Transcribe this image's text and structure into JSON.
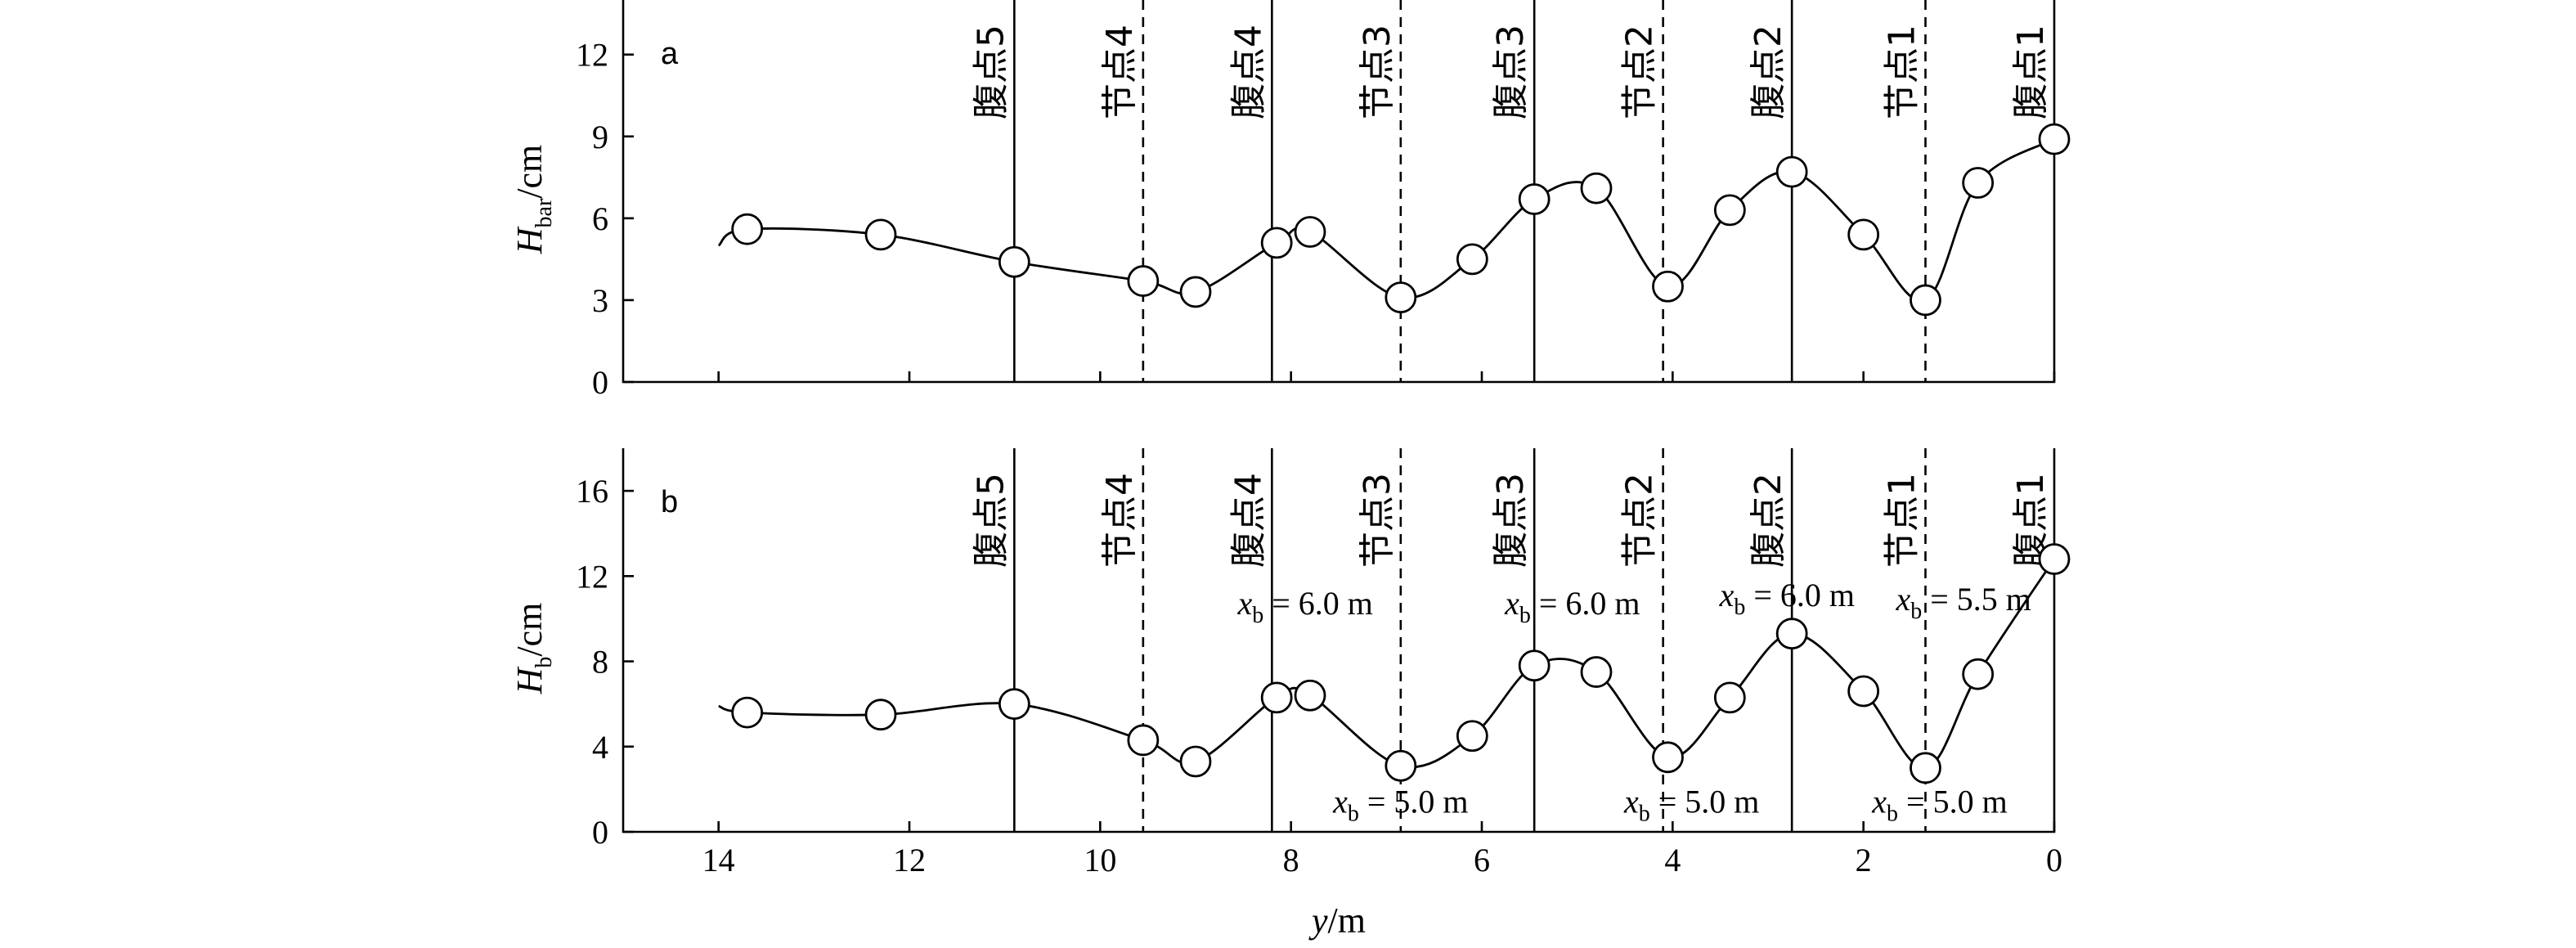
{
  "chart_data": [
    {
      "panel": "a",
      "type": "line",
      "ylabel_main": "H",
      "ylabel_sub": "bar",
      "ylabel_unit": "/cm",
      "ylim": [
        0,
        14
      ],
      "yticks": [
        0,
        3,
        6,
        9,
        12
      ],
      "xlim": [
        15,
        0
      ],
      "xticks": [
        14,
        12,
        10,
        8,
        6,
        4,
        2,
        0
      ],
      "series": [
        {
          "marker": "open-circle",
          "x": [
            13.7,
            12.3,
            10.9,
            9.55,
            9.0,
            8.15,
            7.8,
            6.85,
            6.1,
            5.45,
            4.8,
            4.05,
            3.4,
            2.75,
            2.0,
            1.35,
            0.8,
            0.0
          ],
          "y": [
            5.6,
            5.4,
            4.4,
            3.7,
            3.3,
            5.1,
            5.5,
            3.1,
            4.5,
            6.7,
            7.1,
            3.5,
            6.3,
            7.7,
            5.4,
            3.0,
            7.3,
            8.9
          ]
        }
      ],
      "vlines": [
        {
          "x": 10.9,
          "style": "solid",
          "label": "腹点5"
        },
        {
          "x": 9.55,
          "style": "dotted",
          "label": "节点4"
        },
        {
          "x": 8.2,
          "style": "solid",
          "label": "腹点4"
        },
        {
          "x": 6.85,
          "style": "dotted",
          "label": "节点3"
        },
        {
          "x": 5.45,
          "style": "solid",
          "label": "腹点3"
        },
        {
          "x": 4.1,
          "style": "dotted",
          "label": "节点2"
        },
        {
          "x": 2.75,
          "style": "solid",
          "label": "腹点2"
        },
        {
          "x": 1.35,
          "style": "dotted",
          "label": "节点1"
        },
        {
          "x": 0.0,
          "style": "none",
          "label": "腹点1"
        }
      ],
      "annotations": []
    },
    {
      "panel": "b",
      "type": "line",
      "ylabel_main": "H",
      "ylabel_sub": "b",
      "ylabel_unit": "/cm",
      "ylim": [
        0,
        18
      ],
      "yticks": [
        0,
        4,
        8,
        12,
        16
      ],
      "xlim": [
        15,
        0
      ],
      "xticks": [
        14,
        12,
        10,
        8,
        6,
        4,
        2,
        0
      ],
      "xlabel_main": "y",
      "xlabel_unit": "/m",
      "series": [
        {
          "marker": "open-circle",
          "x": [
            13.7,
            12.3,
            10.9,
            9.55,
            9.0,
            8.15,
            7.8,
            6.85,
            6.1,
            5.45,
            4.8,
            4.05,
            3.4,
            2.75,
            2.0,
            1.35,
            0.8,
            0.0
          ],
          "y": [
            5.6,
            5.5,
            6.0,
            4.3,
            3.3,
            6.3,
            6.4,
            3.1,
            4.5,
            7.8,
            7.5,
            3.5,
            6.3,
            9.3,
            6.6,
            3.0,
            7.4,
            12.8
          ]
        }
      ],
      "vlines": [
        {
          "x": 10.9,
          "style": "solid",
          "label": "腹点5"
        },
        {
          "x": 9.55,
          "style": "dashed",
          "label": "节点4"
        },
        {
          "x": 8.2,
          "style": "solid",
          "label": "腹点4"
        },
        {
          "x": 6.85,
          "style": "dashed",
          "label": "节点3"
        },
        {
          "x": 5.45,
          "style": "solid",
          "label": "腹点3"
        },
        {
          "x": 4.1,
          "style": "dashed",
          "label": "节点2"
        },
        {
          "x": 2.75,
          "style": "solid",
          "label": "腹点2"
        },
        {
          "x": 1.35,
          "style": "dashed",
          "label": "节点1"
        },
        {
          "x": 0.0,
          "style": "none",
          "label": "腹点1"
        }
      ],
      "annotations": [
        {
          "var": "x",
          "sub": "b",
          "text": " = 6.0 m",
          "x": 7.85,
          "y": 10.2
        },
        {
          "var": "x",
          "sub": "b",
          "text": " = 6.0 m",
          "x": 5.05,
          "y": 10.2
        },
        {
          "var": "x",
          "sub": "b",
          "text": " = 6.0 m",
          "x": 2.8,
          "y": 10.6
        },
        {
          "var": "x",
          "sub": "b",
          "text": " = 5.5 m",
          "x": 0.95,
          "y": 10.4
        },
        {
          "var": "x",
          "sub": "b",
          "text": " = 5.0 m",
          "x": 6.85,
          "y": 0.9
        },
        {
          "var": "x",
          "sub": "b",
          "text": " = 5.0 m",
          "x": 3.8,
          "y": 0.9
        },
        {
          "var": "x",
          "sub": "b",
          "text": " = 5.0 m",
          "x": 1.2,
          "y": 0.9
        }
      ]
    }
  ]
}
